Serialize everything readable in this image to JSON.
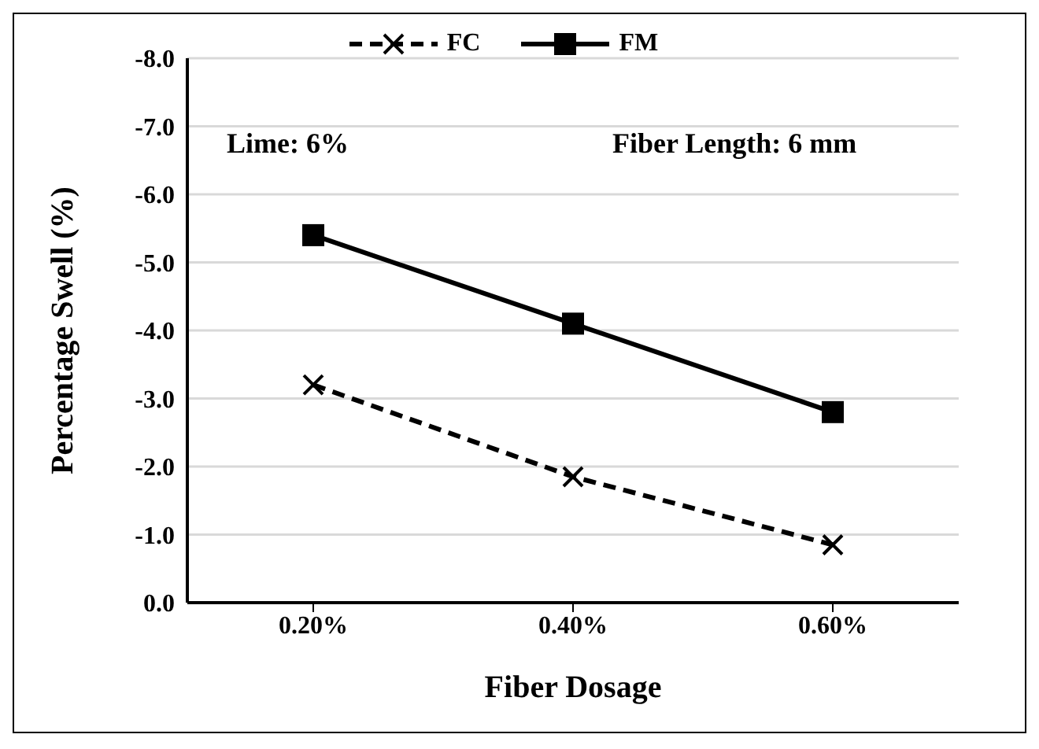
{
  "chart_data": {
    "type": "line",
    "xlabel": "Fiber Dosage",
    "ylabel": "Percentage Swell (%)",
    "categories": [
      "0.20%",
      "0.40%",
      "0.60%"
    ],
    "series": [
      {
        "name": "FC",
        "color": "#000000",
        "values": [
          -3.2,
          -1.85,
          -0.85
        ],
        "marker": "cross",
        "line_style": "dashed"
      },
      {
        "name": "FM",
        "color": "#000000",
        "values": [
          -5.4,
          -4.1,
          -2.8
        ],
        "marker": "square",
        "line_style": "solid"
      }
    ],
    "ylim": [
      0,
      -8
    ],
    "yticks": [
      {
        "value": 0,
        "label": "0.0"
      },
      {
        "value": -1,
        "label": "-1.0"
      },
      {
        "value": -2,
        "label": "-2.0"
      },
      {
        "value": -3,
        "label": "-3.0"
      },
      {
        "value": -4,
        "label": "-4.0"
      },
      {
        "value": -5,
        "label": "-5.0"
      },
      {
        "value": -6,
        "label": "-6.0"
      },
      {
        "value": -7,
        "label": "-7.0"
      },
      {
        "value": -8,
        "label": "-8.0"
      }
    ],
    "grid": "y",
    "legend": "top",
    "annotations": [
      "Lime: 6%",
      "Fiber Length: 6 mm"
    ]
  }
}
